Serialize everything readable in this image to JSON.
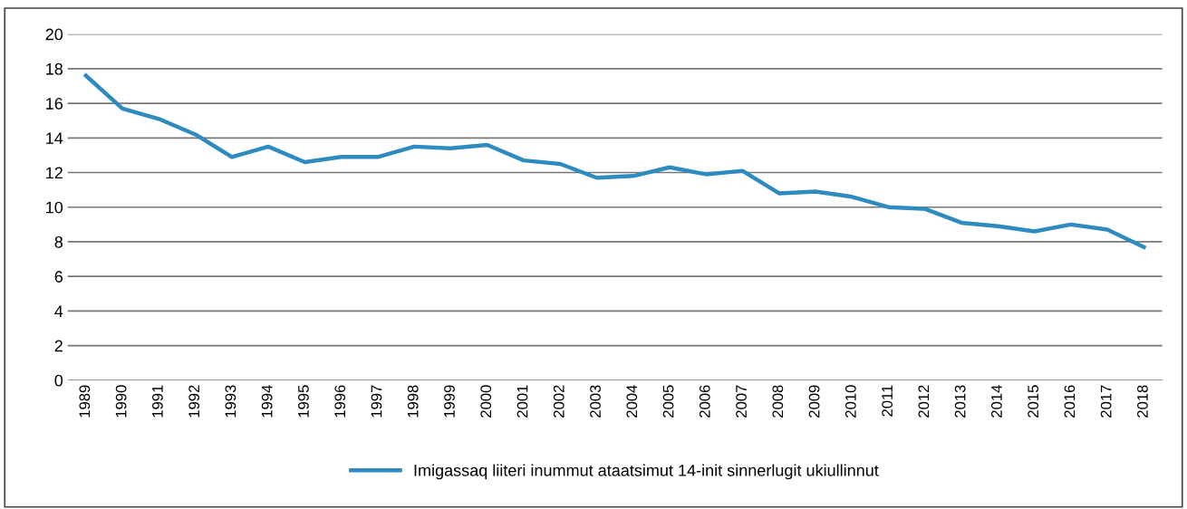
{
  "chart_data": {
    "type": "line",
    "categories": [
      "1989",
      "1990",
      "1991",
      "1992",
      "1993",
      "1994",
      "1995",
      "1996",
      "1997",
      "1998",
      "1999",
      "2000",
      "2001",
      "2002",
      "2003",
      "2004",
      "2005",
      "2006",
      "2007",
      "2008",
      "2009",
      "2010",
      "2011",
      "2012",
      "2013",
      "2014",
      "2015",
      "2016",
      "2017",
      "2018"
    ],
    "series": [
      {
        "name": "Imigassaq liiteri inummut ataatsimut 14-init sinnerlugit ukiullinnut",
        "color": "#2e8bc0",
        "values": [
          17.6,
          15.7,
          15.1,
          14.2,
          12.9,
          13.5,
          12.6,
          12.9,
          12.9,
          13.5,
          13.4,
          13.6,
          12.7,
          12.5,
          11.7,
          11.8,
          12.3,
          11.9,
          12.1,
          10.8,
          10.9,
          10.6,
          10.0,
          9.9,
          9.1,
          8.9,
          8.6,
          9.0,
          8.7,
          7.7
        ]
      }
    ],
    "ylim": [
      0,
      20
    ],
    "yticks": [
      0,
      2,
      4,
      6,
      8,
      10,
      12,
      14,
      16,
      18,
      20
    ],
    "grid": "y",
    "legend": "bottom",
    "marker": "none",
    "line_style": "solid"
  }
}
